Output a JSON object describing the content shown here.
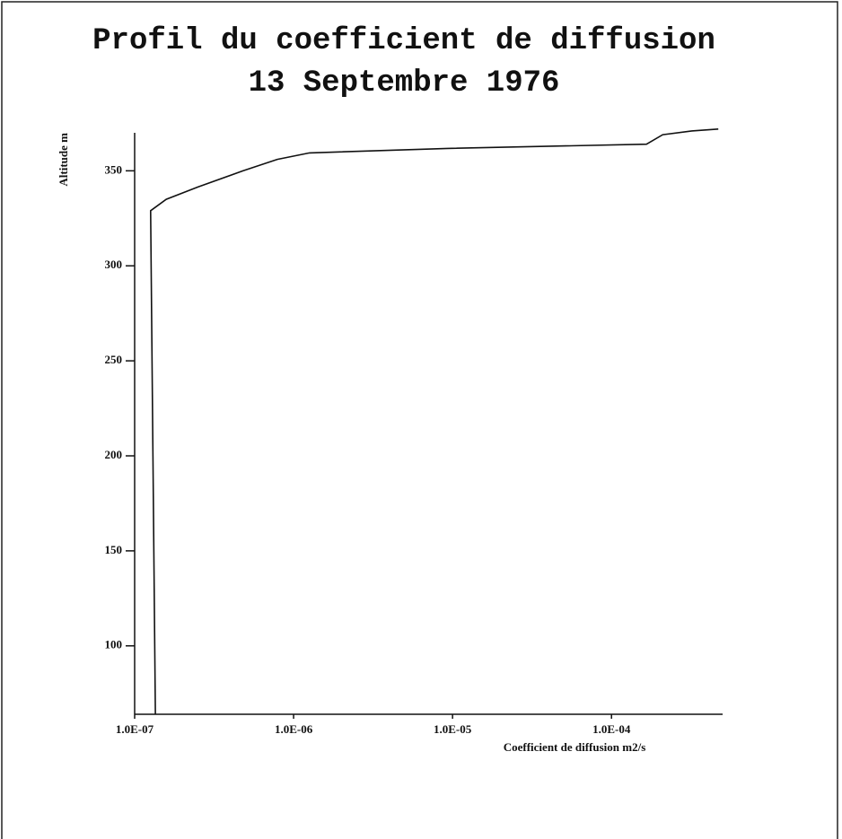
{
  "chart_data": {
    "type": "line",
    "title": "Profil du coefficient de diffusion",
    "subtitle": "13 Septembre 1976",
    "y_label": "Altitude m",
    "x_label": "Coefficient de diffusion m2/s",
    "x": [
      1.35e-07,
      1.26e-07,
      1.58e-07,
      2.5e-07,
      4.8e-07,
      7.9e-07,
      1.26e-06,
      9.3e-06,
      0.000166,
      0.00021,
      0.00032,
      0.00047
    ],
    "series": [
      {
        "name": "Coefficient de diffusion",
        "color": "#111111",
        "values": [
          64,
          329,
          335,
          341.5,
          350,
          356,
          359.4,
          361.8,
          364,
          369,
          371,
          372
        ]
      }
    ],
    "xlog": true,
    "xlim": [
      1e-07,
      0.0005
    ],
    "xticks": [
      {
        "value": 1e-07,
        "label": "1.0E-07"
      },
      {
        "value": 1e-06,
        "label": "1.0E-06"
      },
      {
        "value": 1e-05,
        "label": "1.0E-05"
      },
      {
        "value": 0.0001,
        "label": "1.0E-04"
      }
    ],
    "ylim": [
      64,
      370
    ],
    "yticks": [
      100,
      150,
      200,
      250,
      300,
      350
    ],
    "grid": false
  }
}
